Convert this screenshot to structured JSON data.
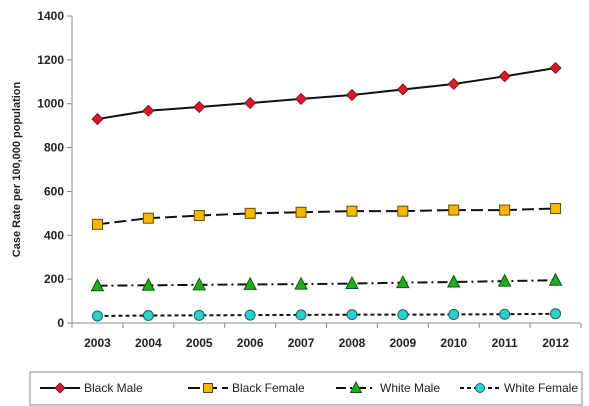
{
  "chart_data": {
    "type": "line",
    "title": "",
    "xlabel": "",
    "ylabel": "Case Rate per 100,000 population",
    "x": [
      "2003",
      "2004",
      "2005",
      "2006",
      "2007",
      "2008",
      "2009",
      "2010",
      "2011",
      "2012"
    ],
    "ylim": [
      0,
      1400
    ],
    "yticks": [
      0,
      200,
      400,
      600,
      800,
      1000,
      1200,
      1400
    ],
    "grid": false,
    "legend_position": "bottom",
    "series": [
      {
        "name": "Black Male",
        "color": "#d7192d",
        "marker": "diamond",
        "dash": "solid",
        "values": [
          930,
          968,
          985,
          1003,
          1022,
          1040,
          1065,
          1090,
          1125,
          1163
        ]
      },
      {
        "name": "Black Female",
        "color": "#f5b700",
        "marker": "square",
        "dash": "longdash",
        "values": [
          450,
          478,
          490,
          500,
          505,
          510,
          510,
          515,
          515,
          522
        ]
      },
      {
        "name": "White Male",
        "color": "#22aa22",
        "marker": "triangle",
        "dash": "dashdot",
        "values": [
          170,
          172,
          174,
          176,
          177,
          180,
          184,
          187,
          191,
          195
        ]
      },
      {
        "name": "White Female",
        "color": "#33cccc",
        "marker": "circle",
        "dash": "dotted",
        "values": [
          32,
          34,
          35,
          36,
          37,
          38,
          38,
          39,
          40,
          42
        ]
      }
    ]
  }
}
